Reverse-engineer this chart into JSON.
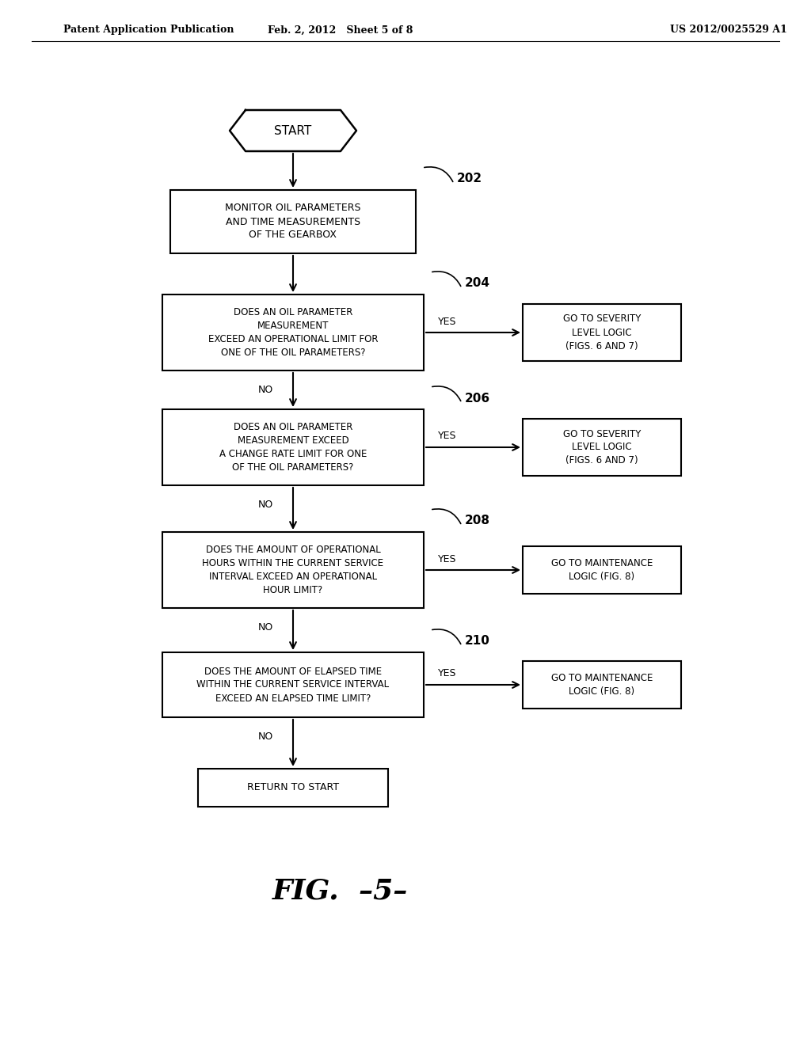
{
  "header_left": "Patent Application Publication",
  "header_mid": "Feb. 2, 2012   Sheet 5 of 8",
  "header_right": "US 2012/0025529 A1",
  "figure_label": "FIG.  –5–",
  "bg_color": "#ffffff",
  "line_color": "#000000",
  "text_color": "#000000",
  "start_label": "START",
  "box202_text": "MONITOR OIL PARAMETERS\nAND TIME MEASUREMENTS\nOF THE GEARBOX",
  "box202_num": "202",
  "box204_text": "DOES AN OIL PARAMETER\nMEASUREMENT\nEXCEED AN OPERATIONAL LIMIT FOR\nONE OF THE OIL PARAMETERS?",
  "box204_num": "204",
  "box204r_text": "GO TO SEVERITY\nLEVEL LOGIC\n(FIGS. 6 AND 7)",
  "box206_text": "DOES AN OIL PARAMETER\nMEASUREMENT EXCEED\nA CHANGE RATE LIMIT FOR ONE\nOF THE OIL PARAMETERS?",
  "box206_num": "206",
  "box206r_text": "GO TO SEVERITY\nLEVEL LOGIC\n(FIGS. 6 AND 7)",
  "box208_text": "DOES THE AMOUNT OF OPERATIONAL\nHOURS WITHIN THE CURRENT SERVICE\nINTERVAL EXCEED AN OPERATIONAL\nHOUR LIMIT?",
  "box208_num": "208",
  "box208r_text": "GO TO MAINTENANCE\nLOGIC (FIG. 8)",
  "box210_text": "DOES THE AMOUNT OF ELAPSED TIME\nWITHIN THE CURRENT SERVICE INTERVAL\nEXCEED AN ELAPSED TIME LIMIT?",
  "box210_num": "210",
  "box210r_text": "GO TO MAINTENANCE\nLOGIC (FIG. 8)",
  "return_text": "RETURN TO START"
}
